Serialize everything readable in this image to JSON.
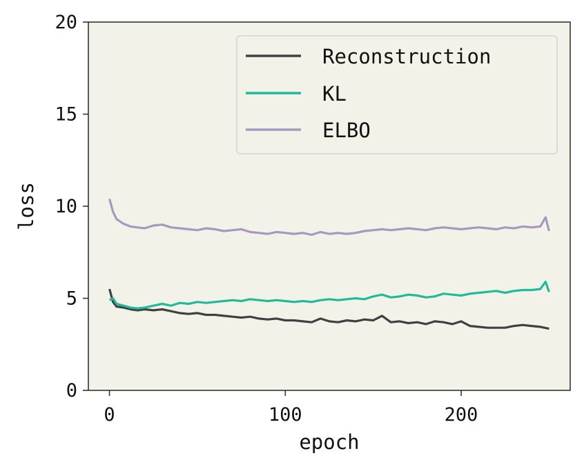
{
  "chart_data": {
    "type": "line",
    "title": "",
    "xlabel": "epoch",
    "ylabel": "loss",
    "xlim": [
      -12,
      262
    ],
    "ylim": [
      0,
      20
    ],
    "xticks": [
      0,
      100,
      200
    ],
    "yticks": [
      0,
      5,
      10,
      15,
      20
    ],
    "xtick_labels": [
      "0",
      "100",
      "200"
    ],
    "ytick_labels": [
      "0",
      "5",
      "10",
      "15",
      "20"
    ],
    "grid": false,
    "legend_position": "upper-right",
    "colors": {
      "background": "#f3f2e8",
      "axes": "#333333"
    },
    "series": [
      {
        "name": "Reconstruction",
        "color": "#404040",
        "x": [
          0,
          2,
          4,
          8,
          12,
          16,
          20,
          25,
          30,
          35,
          40,
          45,
          50,
          55,
          60,
          65,
          70,
          75,
          80,
          85,
          90,
          95,
          100,
          105,
          110,
          115,
          120,
          125,
          130,
          135,
          140,
          145,
          150,
          155,
          160,
          165,
          170,
          175,
          180,
          185,
          190,
          195,
          200,
          205,
          210,
          215,
          220,
          225,
          230,
          235,
          240,
          245,
          250
        ],
        "y": [
          5.5,
          4.8,
          4.55,
          4.5,
          4.4,
          4.35,
          4.4,
          4.35,
          4.4,
          4.3,
          4.2,
          4.15,
          4.2,
          4.1,
          4.1,
          4.05,
          4.0,
          3.95,
          4.0,
          3.9,
          3.85,
          3.9,
          3.8,
          3.8,
          3.75,
          3.7,
          3.9,
          3.75,
          3.7,
          3.8,
          3.75,
          3.85,
          3.8,
          4.05,
          3.7,
          3.75,
          3.65,
          3.7,
          3.6,
          3.75,
          3.7,
          3.6,
          3.75,
          3.5,
          3.45,
          3.4,
          3.4,
          3.4,
          3.5,
          3.55,
          3.5,
          3.45,
          3.35
        ]
      },
      {
        "name": "KL",
        "color": "#20b99a",
        "x": [
          0,
          2,
          4,
          8,
          12,
          16,
          20,
          25,
          30,
          35,
          40,
          45,
          50,
          55,
          60,
          65,
          70,
          75,
          80,
          85,
          90,
          95,
          100,
          105,
          110,
          115,
          120,
          125,
          130,
          135,
          140,
          145,
          150,
          155,
          160,
          165,
          170,
          175,
          180,
          185,
          190,
          195,
          200,
          205,
          210,
          215,
          220,
          225,
          230,
          235,
          240,
          245,
          248,
          250
        ],
        "y": [
          4.9,
          5.0,
          4.7,
          4.6,
          4.5,
          4.45,
          4.5,
          4.6,
          4.7,
          4.6,
          4.75,
          4.7,
          4.8,
          4.75,
          4.8,
          4.85,
          4.9,
          4.85,
          4.95,
          4.9,
          4.85,
          4.9,
          4.85,
          4.8,
          4.85,
          4.8,
          4.9,
          4.95,
          4.9,
          4.95,
          5.0,
          4.95,
          5.1,
          5.2,
          5.05,
          5.1,
          5.2,
          5.15,
          5.05,
          5.1,
          5.25,
          5.2,
          5.15,
          5.25,
          5.3,
          5.35,
          5.4,
          5.3,
          5.4,
          5.45,
          5.45,
          5.5,
          5.9,
          5.35
        ]
      },
      {
        "name": "ELBO",
        "color": "#a898c0",
        "x": [
          0,
          2,
          4,
          8,
          12,
          16,
          20,
          25,
          30,
          35,
          40,
          45,
          50,
          55,
          60,
          65,
          70,
          75,
          80,
          85,
          90,
          95,
          100,
          105,
          110,
          115,
          120,
          125,
          130,
          135,
          140,
          145,
          150,
          155,
          160,
          165,
          170,
          175,
          180,
          185,
          190,
          195,
          200,
          205,
          210,
          215,
          220,
          225,
          230,
          235,
          240,
          245,
          248,
          250
        ],
        "y": [
          10.4,
          9.7,
          9.3,
          9.05,
          8.9,
          8.85,
          8.8,
          8.95,
          9.0,
          8.85,
          8.8,
          8.75,
          8.7,
          8.8,
          8.75,
          8.65,
          8.7,
          8.75,
          8.6,
          8.55,
          8.5,
          8.6,
          8.55,
          8.5,
          8.55,
          8.45,
          8.6,
          8.5,
          8.55,
          8.5,
          8.55,
          8.65,
          8.7,
          8.75,
          8.7,
          8.75,
          8.8,
          8.75,
          8.7,
          8.8,
          8.85,
          8.8,
          8.75,
          8.8,
          8.85,
          8.8,
          8.75,
          8.85,
          8.8,
          8.9,
          8.85,
          8.9,
          9.4,
          8.65
        ]
      }
    ]
  }
}
